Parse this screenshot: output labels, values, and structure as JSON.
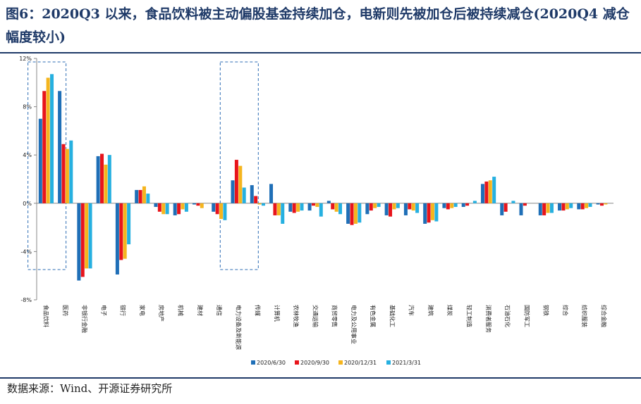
{
  "title": "图6：2020Q3 以来，食品饮料被主动偏股基金持续加仓，电新则先被加仓后被持续减仓(2020Q4 减仓幅度较小)",
  "source": "数据来源：Wind、开源证券研究所",
  "colors": {
    "title": "#1f3a68",
    "s1": "#1f6fb7",
    "s2": "#e8141b",
    "s3": "#f5b51e",
    "s4": "#26b0e0",
    "highlight": "#2e6db5"
  },
  "chart_data": {
    "type": "bar",
    "categories": [
      "食品饮料",
      "医药",
      "非银行金融",
      "电子",
      "银行",
      "家电",
      "房地产",
      "机械",
      "建材",
      "通信",
      "电力设备及新能源",
      "传媒",
      "计算机",
      "农林牧渔",
      "交通运输",
      "商贸零售",
      "电力及公用事业",
      "有色金属",
      "基础化工",
      "汽车",
      "建筑",
      "煤炭",
      "轻工制造",
      "消费者服务",
      "石油石化",
      "国防军工",
      "钢铁",
      "综合",
      "纺织服装",
      "综合金融"
    ],
    "series": [
      {
        "name": "2020/6/30",
        "values": [
          7.0,
          9.3,
          -6.4,
          3.9,
          -5.9,
          1.1,
          -0.3,
          -1.0,
          -0.1,
          -0.7,
          1.9,
          1.5,
          1.6,
          -0.7,
          -0.6,
          0.2,
          -1.7,
          -0.9,
          -1.0,
          -1.0,
          -1.7,
          -0.4,
          -0.3,
          1.6,
          -1.0,
          -1.0,
          -1.0,
          -0.6,
          -0.5,
          -0.1
        ]
      },
      {
        "name": "2020/9/30",
        "values": [
          9.3,
          4.9,
          -6.1,
          4.1,
          -4.7,
          1.1,
          -0.7,
          -0.9,
          -0.2,
          -0.9,
          3.6,
          0.6,
          -1.0,
          -0.8,
          -0.2,
          -0.5,
          -1.8,
          -0.6,
          -1.1,
          -0.5,
          -1.6,
          -0.5,
          -0.2,
          1.8,
          -0.7,
          -0.2,
          -1.0,
          -0.6,
          -0.5,
          -0.2
        ]
      },
      {
        "name": "2020/12/31",
        "values": [
          10.4,
          4.5,
          -5.4,
          3.2,
          -4.6,
          1.4,
          -0.9,
          -0.5,
          -0.4,
          -1.3,
          3.1,
          -0.1,
          -1.0,
          -0.7,
          -0.3,
          -0.7,
          -1.7,
          -0.4,
          -0.5,
          -0.6,
          -1.4,
          -0.4,
          0.0,
          1.9,
          0.0,
          0.0,
          -0.8,
          -0.5,
          -0.4,
          -0.1
        ]
      },
      {
        "name": "2021/3/31",
        "values": [
          10.7,
          5.2,
          -5.4,
          4.0,
          -3.4,
          0.8,
          -0.9,
          -0.7,
          0.0,
          -1.4,
          1.3,
          -0.2,
          -1.7,
          -0.6,
          -1.1,
          -0.9,
          -1.6,
          -0.3,
          -0.4,
          -0.8,
          -1.5,
          -0.3,
          0.2,
          2.2,
          0.2,
          0.0,
          -0.8,
          -0.4,
          -0.3,
          0.0
        ]
      }
    ],
    "yticks": [
      "12%",
      "8%",
      "4%",
      "0%",
      "-4%",
      "-8%"
    ],
    "ytick_values": [
      12,
      8,
      4,
      0,
      -4,
      -8
    ],
    "ylim": [
      -8,
      12
    ],
    "legend": "bottom",
    "highlighted_categories": [
      "食品饮料",
      "电力设备及新能源"
    ]
  }
}
